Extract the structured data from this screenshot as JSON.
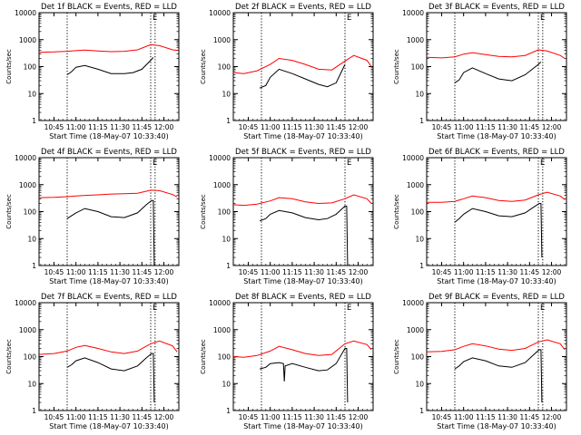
{
  "figure": {
    "xlabel": "Start Time (18-May-07 10:33:40)",
    "ylabel": "Counts/sec",
    "legend_text": "BLACK = Events, RED = LLD",
    "x_tick_labels": [
      "10:45",
      "11:00",
      "11:15",
      "11:30",
      "11:45",
      "12:00"
    ],
    "y_tick_labels": [
      "1",
      "10",
      "100",
      "1000",
      "10000"
    ],
    "colors": {
      "events": "#000000",
      "lld": "#ff0000",
      "marker": "#000000"
    }
  },
  "chart_data": [
    {
      "type": "line",
      "title": "Det 1f BLACK = Events, RED = LLD",
      "xlabel": "Start Time (18-May-07 10:33:40)",
      "ylabel": "Counts/sec",
      "yscale": "log",
      "ylim": [
        1,
        10000
      ],
      "xlim": [
        10.58,
        12.17
      ],
      "markers": [
        10.9,
        11.85,
        11.9
      ],
      "marker_label": "E",
      "series": [
        {
          "name": "Events",
          "x": [
            10.9,
            10.95,
            11.0,
            11.1,
            11.25,
            11.4,
            11.55,
            11.65,
            11.75,
            11.85,
            11.88
          ],
          "y": [
            50,
            65,
            95,
            110,
            80,
            55,
            55,
            60,
            80,
            170,
            220
          ]
        },
        {
          "name": "LLD",
          "x": [
            10.58,
            10.75,
            10.9,
            11.0,
            11.1,
            11.25,
            11.4,
            11.55,
            11.7,
            11.85,
            11.95,
            12.1,
            12.15
          ],
          "y": [
            340,
            350,
            370,
            390,
            410,
            380,
            360,
            370,
            420,
            650,
            600,
            420,
            400
          ]
        }
      ]
    },
    {
      "type": "line",
      "title": "Det 2f BLACK = Events, RED = LLD",
      "xlabel": "Start Time (18-May-07 10:33:40)",
      "ylabel": "Counts/sec",
      "yscale": "log",
      "ylim": [
        1,
        10000
      ],
      "xlim": [
        10.58,
        12.17
      ],
      "markers": [
        10.9,
        11.85
      ],
      "marker_label": "E",
      "series": [
        {
          "name": "Events",
          "x": [
            10.88,
            10.95,
            11.0,
            11.1,
            11.25,
            11.4,
            11.55,
            11.65,
            11.75,
            11.85
          ],
          "y": [
            16,
            20,
            40,
            80,
            55,
            35,
            22,
            18,
            25,
            120
          ]
        },
        {
          "name": "LLD",
          "x": [
            10.58,
            10.7,
            10.85,
            11.0,
            11.1,
            11.25,
            11.4,
            11.55,
            11.7,
            11.85,
            11.95,
            12.1,
            12.15
          ],
          "y": [
            60,
            55,
            70,
            120,
            200,
            170,
            120,
            80,
            75,
            160,
            260,
            170,
            100
          ]
        }
      ]
    },
    {
      "type": "line",
      "title": "Det 3f BLACK = Events, RED = LLD",
      "xlabel": "Start Time (18-May-07 10:33:40)",
      "ylabel": "Counts/sec",
      "yscale": "log",
      "ylim": [
        1,
        10000
      ],
      "xlim": [
        10.58,
        12.17
      ],
      "markers": [
        10.9,
        11.85,
        11.9
      ],
      "marker_label": "E",
      "series": [
        {
          "name": "Events",
          "x": [
            10.9,
            10.95,
            11.0,
            11.1,
            11.25,
            11.4,
            11.55,
            11.7,
            11.85,
            11.88
          ],
          "y": [
            25,
            32,
            60,
            90,
            55,
            35,
            30,
            50,
            120,
            150
          ]
        },
        {
          "name": "LLD",
          "x": [
            10.58,
            10.75,
            10.9,
            11.0,
            11.1,
            11.25,
            11.4,
            11.55,
            11.7,
            11.85,
            11.95,
            12.1,
            12.15
          ],
          "y": [
            220,
            210,
            230,
            290,
            330,
            280,
            240,
            230,
            260,
            420,
            380,
            260,
            200
          ]
        }
      ]
    },
    {
      "type": "line",
      "title": "Det 4f BLACK = Events, RED = LLD",
      "xlabel": "Start Time (18-May-07 10:33:40)",
      "ylabel": "Counts/sec",
      "yscale": "log",
      "ylim": [
        1,
        10000
      ],
      "xlim": [
        10.58,
        12.17
      ],
      "markers": [
        10.9,
        11.85,
        11.9
      ],
      "marker_label": "E",
      "series": [
        {
          "name": "Events",
          "x": [
            10.9,
            10.95,
            11.0,
            11.1,
            11.25,
            11.4,
            11.55,
            11.7,
            11.8,
            11.86,
            11.88,
            11.89
          ],
          "y": [
            55,
            70,
            90,
            130,
            100,
            65,
            60,
            90,
            180,
            260,
            260,
            1
          ]
        },
        {
          "name": "LLD",
          "x": [
            10.58,
            10.75,
            10.9,
            11.0,
            11.1,
            11.25,
            11.4,
            11.55,
            11.7,
            11.85,
            11.95,
            12.1,
            12.15
          ],
          "y": [
            330,
            340,
            360,
            380,
            400,
            420,
            450,
            460,
            480,
            620,
            600,
            430,
            350
          ]
        }
      ]
    },
    {
      "type": "line",
      "title": "Det 5f BLACK = Events, RED = LLD",
      "xlabel": "Start Time (18-May-07 10:33:40)",
      "ylabel": "Counts/sec",
      "yscale": "log",
      "ylim": [
        1,
        10000
      ],
      "xlim": [
        10.58,
        12.17
      ],
      "markers": [
        10.9,
        11.85
      ],
      "marker_label": "E",
      "series": [
        {
          "name": "Events",
          "x": [
            10.88,
            10.95,
            11.0,
            11.1,
            11.25,
            11.4,
            11.55,
            11.65,
            11.75,
            11.85,
            11.87,
            11.88
          ],
          "y": [
            45,
            55,
            80,
            110,
            90,
            60,
            50,
            55,
            80,
            160,
            160,
            1
          ]
        },
        {
          "name": "LLD",
          "x": [
            10.58,
            10.7,
            10.85,
            11.0,
            11.1,
            11.25,
            11.4,
            11.55,
            11.7,
            11.85,
            11.95,
            12.1,
            12.15
          ],
          "y": [
            180,
            170,
            190,
            250,
            330,
            300,
            230,
            200,
            210,
            300,
            420,
            300,
            200
          ]
        }
      ]
    },
    {
      "type": "line",
      "title": "Det 6f BLACK = Events, RED = LLD",
      "xlabel": "Start Time (18-May-07 10:33:40)",
      "ylabel": "Counts/sec",
      "yscale": "log",
      "ylim": [
        1,
        10000
      ],
      "xlim": [
        10.58,
        12.17
      ],
      "markers": [
        10.9,
        11.85,
        11.9
      ],
      "marker_label": "E",
      "series": [
        {
          "name": "Events",
          "x": [
            10.9,
            10.95,
            11.0,
            11.1,
            11.25,
            11.4,
            11.55,
            11.7,
            11.8,
            11.86,
            11.88,
            11.89
          ],
          "y": [
            40,
            55,
            80,
            130,
            100,
            70,
            65,
            90,
            150,
            200,
            200,
            2
          ]
        },
        {
          "name": "LLD",
          "x": [
            10.58,
            10.75,
            10.9,
            11.0,
            11.1,
            11.25,
            11.4,
            11.55,
            11.7,
            11.85,
            11.95,
            12.1,
            12.15
          ],
          "y": [
            220,
            220,
            240,
            300,
            380,
            330,
            260,
            240,
            270,
            420,
            520,
            380,
            280
          ]
        }
      ]
    },
    {
      "type": "line",
      "title": "Det 7f BLACK = Events, RED = LLD",
      "xlabel": "Start Time (18-May-07 10:33:40)",
      "ylabel": "Counts/sec",
      "yscale": "log",
      "ylim": [
        1,
        10000
      ],
      "xlim": [
        10.58,
        12.17
      ],
      "markers": [
        10.9,
        11.85,
        11.9
      ],
      "marker_label": "E",
      "series": [
        {
          "name": "Events",
          "x": [
            10.9,
            10.95,
            11.0,
            11.1,
            11.25,
            11.4,
            11.55,
            11.7,
            11.8,
            11.86,
            11.88,
            11.89
          ],
          "y": [
            40,
            50,
            70,
            90,
            60,
            35,
            30,
            45,
            90,
            130,
            130,
            2
          ]
        },
        {
          "name": "LLD",
          "x": [
            10.58,
            10.75,
            10.9,
            11.0,
            11.1,
            11.25,
            11.4,
            11.55,
            11.7,
            11.85,
            11.95,
            12.1,
            12.15
          ],
          "y": [
            120,
            130,
            160,
            220,
            260,
            200,
            150,
            130,
            160,
            300,
            380,
            250,
            150
          ]
        }
      ]
    },
    {
      "type": "line",
      "title": "Det 8f BLACK = Events, RED = LLD",
      "xlabel": "Start Time (18-May-07 10:33:40)",
      "ylabel": "Counts/sec",
      "yscale": "log",
      "ylim": [
        1,
        10000
      ],
      "xlim": [
        10.58,
        12.17
      ],
      "markers": [
        10.9,
        11.85
      ],
      "marker_label": "E",
      "series": [
        {
          "name": "Events",
          "x": [
            10.88,
            10.95,
            11.0,
            11.1,
            11.15,
            11.16,
            11.17,
            11.25,
            11.4,
            11.55,
            11.65,
            11.75,
            11.85,
            11.87,
            11.88
          ],
          "y": [
            35,
            40,
            55,
            60,
            55,
            12,
            45,
            55,
            40,
            30,
            32,
            55,
            200,
            200,
            2
          ]
        },
        {
          "name": "LLD",
          "x": [
            10.58,
            10.7,
            10.85,
            11.0,
            11.1,
            11.25,
            11.4,
            11.55,
            11.7,
            11.85,
            11.95,
            12.1,
            12.15
          ],
          "y": [
            100,
            95,
            110,
            160,
            240,
            180,
            130,
            110,
            120,
            300,
            380,
            280,
            180
          ]
        }
      ]
    },
    {
      "type": "line",
      "title": "Det 9f BLACK = Events, RED = LLD",
      "xlabel": "Start Time (18-May-07 10:33:40)",
      "ylabel": "Counts/sec",
      "yscale": "log",
      "ylim": [
        1,
        10000
      ],
      "xlim": [
        10.58,
        12.17
      ],
      "markers": [
        10.9,
        11.85,
        11.9
      ],
      "marker_label": "E",
      "series": [
        {
          "name": "Events",
          "x": [
            10.9,
            10.95,
            11.0,
            11.1,
            11.25,
            11.4,
            11.55,
            11.7,
            11.8,
            11.86,
            11.88,
            11.89
          ],
          "y": [
            35,
            45,
            65,
            90,
            70,
            45,
            40,
            60,
            120,
            180,
            180,
            2
          ]
        },
        {
          "name": "LLD",
          "x": [
            10.58,
            10.75,
            10.9,
            11.0,
            11.1,
            11.25,
            11.4,
            11.55,
            11.7,
            11.85,
            11.95,
            12.1,
            12.15
          ],
          "y": [
            150,
            155,
            180,
            240,
            300,
            250,
            190,
            170,
            200,
            350,
            420,
            300,
            180
          ]
        }
      ]
    }
  ]
}
